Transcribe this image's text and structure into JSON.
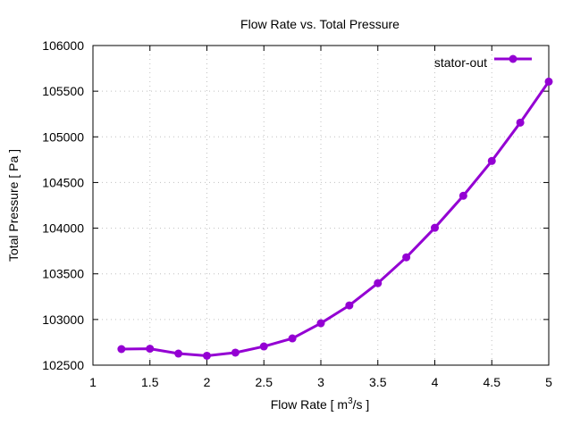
{
  "chart_data": {
    "type": "line",
    "title": "Flow Rate vs. Total Pressure",
    "xlabel": "Flow Rate [ m3/s ]",
    "xlabel_parts": {
      "pre": "Flow Rate [ m",
      "sup": "3",
      "post": "/s ]"
    },
    "ylabel": "Total Pressure [ Pa ]",
    "xlim": [
      1,
      5
    ],
    "ylim": [
      102500,
      106000
    ],
    "xticks": [
      1,
      1.5,
      2,
      2.5,
      3,
      3.5,
      4,
      4.5,
      5
    ],
    "xtick_labels": [
      "1",
      "1.5",
      "2",
      "2.5",
      "3",
      "3.5",
      "4",
      "4.5",
      "5"
    ],
    "yticks": [
      102500,
      103000,
      103500,
      104000,
      104500,
      105000,
      105500,
      106000
    ],
    "ytick_labels": [
      "102500",
      "103000",
      "103500",
      "104000",
      "104500",
      "105000",
      "105500",
      "106000"
    ],
    "grid": true,
    "legend_position": "top-right",
    "series": [
      {
        "name": "stator-out",
        "color": "#9400d3",
        "x": [
          1.25,
          1.5,
          1.75,
          2.0,
          2.25,
          2.5,
          2.75,
          3.0,
          3.25,
          3.5,
          3.75,
          4.0,
          4.25,
          4.5,
          4.75,
          5.0
        ],
        "values": [
          102676,
          102680,
          102627,
          102603,
          102637,
          102705,
          102793,
          102959,
          103154,
          103398,
          103681,
          104004,
          104355,
          104736,
          105156,
          105605
        ]
      }
    ]
  }
}
